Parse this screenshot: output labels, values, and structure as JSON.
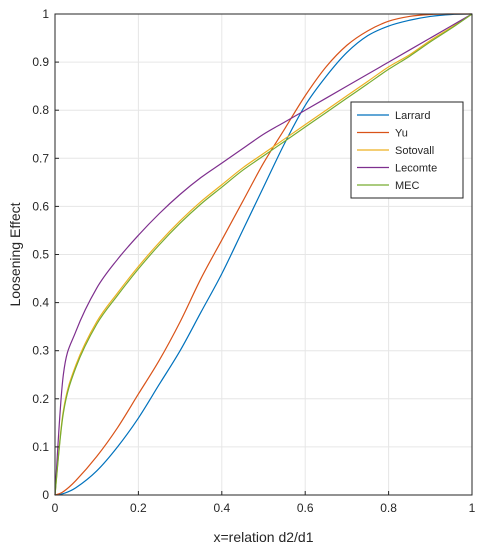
{
  "chart_data": {
    "type": "line",
    "title": "",
    "xlabel": "x=relation d2/d1",
    "ylabel": "Loosening Effect",
    "xlim": [
      0,
      1
    ],
    "ylim": [
      0,
      1
    ],
    "xticks": [
      "0",
      "0.2",
      "0.4",
      "0.6",
      "0.8",
      "1"
    ],
    "yticks": [
      "0",
      "0.1",
      "0.2",
      "0.3",
      "0.4",
      "0.5",
      "0.6",
      "0.7",
      "0.8",
      "0.9",
      "1"
    ],
    "grid": true,
    "legend_position": "right",
    "x": [
      0,
      0.02,
      0.05,
      0.1,
      0.15,
      0.2,
      0.25,
      0.3,
      0.35,
      0.4,
      0.45,
      0.5,
      0.55,
      0.6,
      0.65,
      0.7,
      0.75,
      0.8,
      0.85,
      0.9,
      0.95,
      1
    ],
    "series": [
      {
        "name": "Larrard",
        "color": "#0072BD",
        "values": [
          0,
          0.003,
          0.015,
          0.05,
          0.1,
          0.16,
          0.23,
          0.3,
          0.38,
          0.46,
          0.55,
          0.64,
          0.73,
          0.81,
          0.87,
          0.92,
          0.955,
          0.975,
          0.987,
          0.995,
          0.999,
          1
        ]
      },
      {
        "name": "Yu",
        "color": "#D95319",
        "values": [
          0,
          0.007,
          0.03,
          0.08,
          0.14,
          0.21,
          0.28,
          0.36,
          0.45,
          0.53,
          0.61,
          0.69,
          0.76,
          0.83,
          0.89,
          0.935,
          0.965,
          0.985,
          0.995,
          0.999,
          1,
          1
        ]
      },
      {
        "name": "Sotovall",
        "color": "#EDB120",
        "values": [
          0,
          0.175,
          0.27,
          0.36,
          0.42,
          0.475,
          0.525,
          0.57,
          0.61,
          0.645,
          0.68,
          0.71,
          0.74,
          0.77,
          0.8,
          0.83,
          0.86,
          0.89,
          0.915,
          0.945,
          0.972,
          1
        ]
      },
      {
        "name": "Lecomte",
        "color": "#7E2F8E",
        "values": [
          0,
          0.25,
          0.34,
          0.43,
          0.49,
          0.54,
          0.585,
          0.625,
          0.66,
          0.69,
          0.72,
          0.75,
          0.775,
          0.8,
          0.825,
          0.85,
          0.875,
          0.9,
          0.925,
          0.95,
          0.975,
          1
        ]
      },
      {
        "name": "MEC",
        "color": "#77AC30",
        "values": [
          0,
          0.17,
          0.265,
          0.355,
          0.415,
          0.47,
          0.52,
          0.565,
          0.605,
          0.64,
          0.675,
          0.705,
          0.735,
          0.765,
          0.795,
          0.825,
          0.855,
          0.885,
          0.912,
          0.942,
          0.97,
          1
        ]
      }
    ]
  }
}
